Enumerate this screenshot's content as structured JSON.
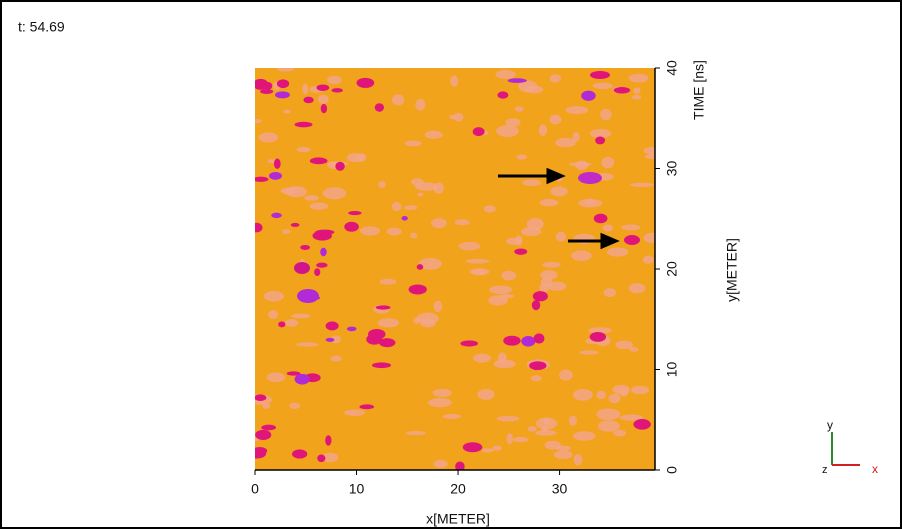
{
  "chart_data": {
    "type": "image_plot",
    "title": "t: 54.69",
    "x_label": "x[METER]",
    "y_label": "y[METER]",
    "annotation": "TIME [ns]",
    "xlim": [
      0,
      39.4
    ],
    "xticks": [
      0,
      10,
      20,
      30
    ],
    "ylim": [
      0,
      40
    ],
    "yticks": [
      0,
      10,
      20,
      30,
      40
    ],
    "triad_labels": [
      "y",
      "z",
      "x"
    ]
  }
}
